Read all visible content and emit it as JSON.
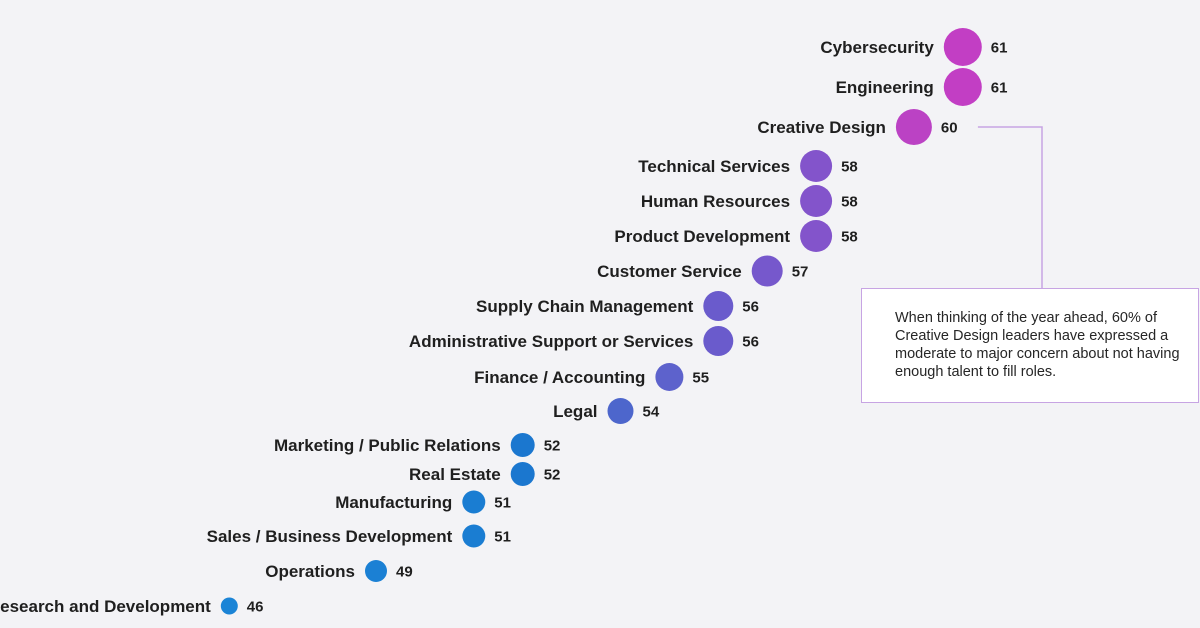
{
  "chart_data": {
    "type": "scatter",
    "categories": [
      "Cybersecurity",
      "Engineering",
      "Creative Design",
      "Technical Services",
      "Human Resources",
      "Product Development",
      "Customer Service",
      "Supply Chain Management",
      "Administrative Support or Services",
      "Finance / Accounting",
      "Legal",
      "Marketing / Public Relations",
      "Real Estate",
      "Manufacturing",
      "Sales / Business Development",
      "Operations",
      "Research and Development"
    ],
    "values": [
      61,
      61,
      60,
      58,
      58,
      58,
      57,
      56,
      56,
      55,
      54,
      52,
      52,
      51,
      51,
      49,
      46
    ],
    "colors": [
      "#c23ec4",
      "#c23ec4",
      "#bb42c4",
      "#8354cb",
      "#8354cb",
      "#8354cb",
      "#7658cc",
      "#6a5bcc",
      "#6a5bcc",
      "#5d62cc",
      "#4d66cc",
      "#1b77cf",
      "#1b77cf",
      "#1a7dd2",
      "#1a7dd2",
      "#1b80d4",
      "#1b84d6"
    ],
    "title": "",
    "xlabel": "",
    "ylabel": "",
    "legend": "none",
    "grid": false
  },
  "callout": {
    "text": "When thinking of the year ahead, 60% of Creative Design leaders have expressed a moderate to major concern about not having enough talent to fill roles."
  }
}
